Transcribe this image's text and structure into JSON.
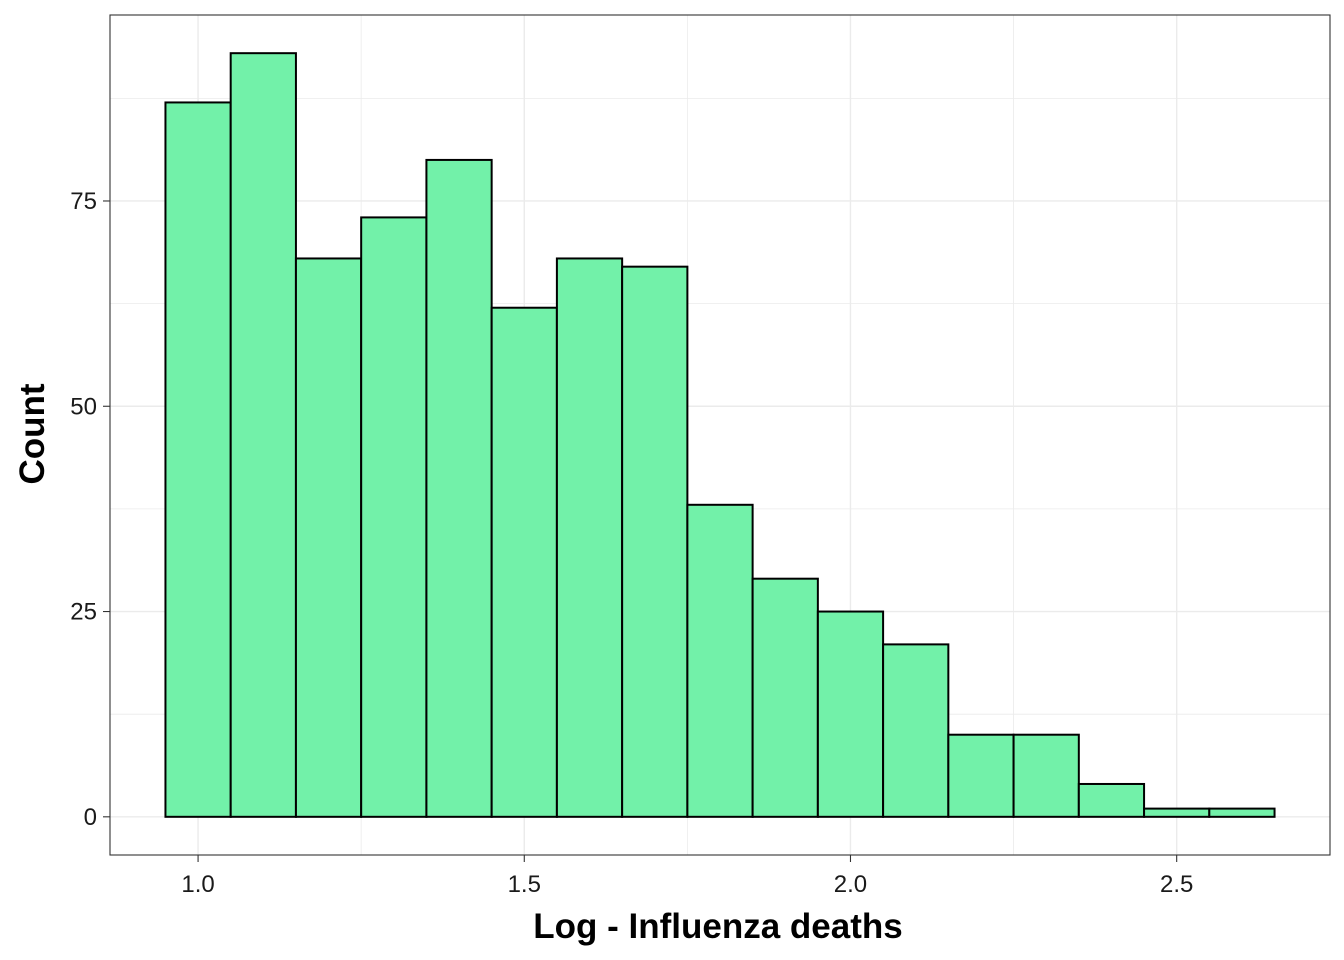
{
  "chart_data": {
    "type": "bar",
    "title": "",
    "xlabel": "Log - Influenza deaths",
    "ylabel": "Count",
    "bin_width": 0.1,
    "bins": [
      {
        "x0": 0.95,
        "x1": 1.05,
        "count": 87
      },
      {
        "x0": 1.05,
        "x1": 1.15,
        "count": 93
      },
      {
        "x0": 1.15,
        "x1": 1.25,
        "count": 68
      },
      {
        "x0": 1.25,
        "x1": 1.35,
        "count": 73
      },
      {
        "x0": 1.35,
        "x1": 1.45,
        "count": 80
      },
      {
        "x0": 1.45,
        "x1": 1.55,
        "count": 62
      },
      {
        "x0": 1.55,
        "x1": 1.65,
        "count": 68
      },
      {
        "x0": 1.65,
        "x1": 1.75,
        "count": 67
      },
      {
        "x0": 1.75,
        "x1": 1.85,
        "count": 38
      },
      {
        "x0": 1.85,
        "x1": 1.95,
        "count": 29
      },
      {
        "x0": 1.95,
        "x1": 2.05,
        "count": 25
      },
      {
        "x0": 2.05,
        "x1": 2.15,
        "count": 21
      },
      {
        "x0": 2.15,
        "x1": 2.25,
        "count": 10
      },
      {
        "x0": 2.25,
        "x1": 2.35,
        "count": 10
      },
      {
        "x0": 2.35,
        "x1": 2.45,
        "count": 4
      },
      {
        "x0": 2.45,
        "x1": 2.55,
        "count": 1
      },
      {
        "x0": 2.55,
        "x1": 2.65,
        "count": 1
      }
    ],
    "xlim": [
      0.865,
      2.735
    ],
    "ylim": [
      -4.65,
      97.65
    ],
    "x_ticks": [
      {
        "value": 1.0,
        "label": "1.0"
      },
      {
        "value": 1.5,
        "label": "1.5"
      },
      {
        "value": 2.0,
        "label": "2.0"
      },
      {
        "value": 2.5,
        "label": "2.5"
      }
    ],
    "y_ticks": [
      {
        "value": 0,
        "label": "0"
      },
      {
        "value": 25,
        "label": "25"
      },
      {
        "value": 50,
        "label": "50"
      },
      {
        "value": 75,
        "label": "75"
      }
    ],
    "grid": true,
    "bar_fill": "#72f1a9",
    "bar_stroke": "#000000",
    "grid_color": "#ebebeb",
    "panel_border": "#333333"
  }
}
